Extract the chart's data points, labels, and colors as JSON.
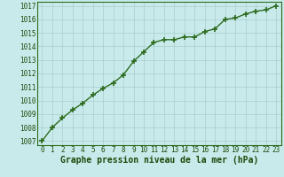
{
  "x": [
    0,
    1,
    2,
    3,
    4,
    5,
    6,
    7,
    8,
    9,
    10,
    11,
    12,
    13,
    14,
    15,
    16,
    17,
    18,
    19,
    20,
    21,
    22,
    23
  ],
  "y": [
    1007.0,
    1008.0,
    1008.7,
    1009.3,
    1009.8,
    1010.4,
    1010.9,
    1011.3,
    1011.9,
    1012.9,
    1013.6,
    1014.3,
    1014.5,
    1014.5,
    1014.7,
    1014.7,
    1015.1,
    1015.3,
    1016.0,
    1016.1,
    1016.4,
    1016.6,
    1016.7,
    1017.0
  ],
  "line_color": "#2d6b1e",
  "marker_color": "#2d6b1e",
  "bg_color": "#c8eaea",
  "grid_color": "#a8cece",
  "xlabel": "Graphe pression niveau de la mer (hPa)",
  "xlim": [
    -0.5,
    23.5
  ],
  "ylim": [
    1006.7,
    1017.3
  ],
  "yticks": [
    1007,
    1008,
    1009,
    1010,
    1011,
    1012,
    1013,
    1014,
    1015,
    1016,
    1017
  ],
  "xticks": [
    0,
    1,
    2,
    3,
    4,
    5,
    6,
    7,
    8,
    9,
    10,
    11,
    12,
    13,
    14,
    15,
    16,
    17,
    18,
    19,
    20,
    21,
    22,
    23
  ],
  "tick_label_color": "#1a4a0a",
  "xlabel_color": "#1a4a0a",
  "axis_color": "#2d6b1e",
  "line_width": 1.0,
  "marker_size": 4.0,
  "font_size_tick": 5.5,
  "font_size_xlabel": 7.0
}
